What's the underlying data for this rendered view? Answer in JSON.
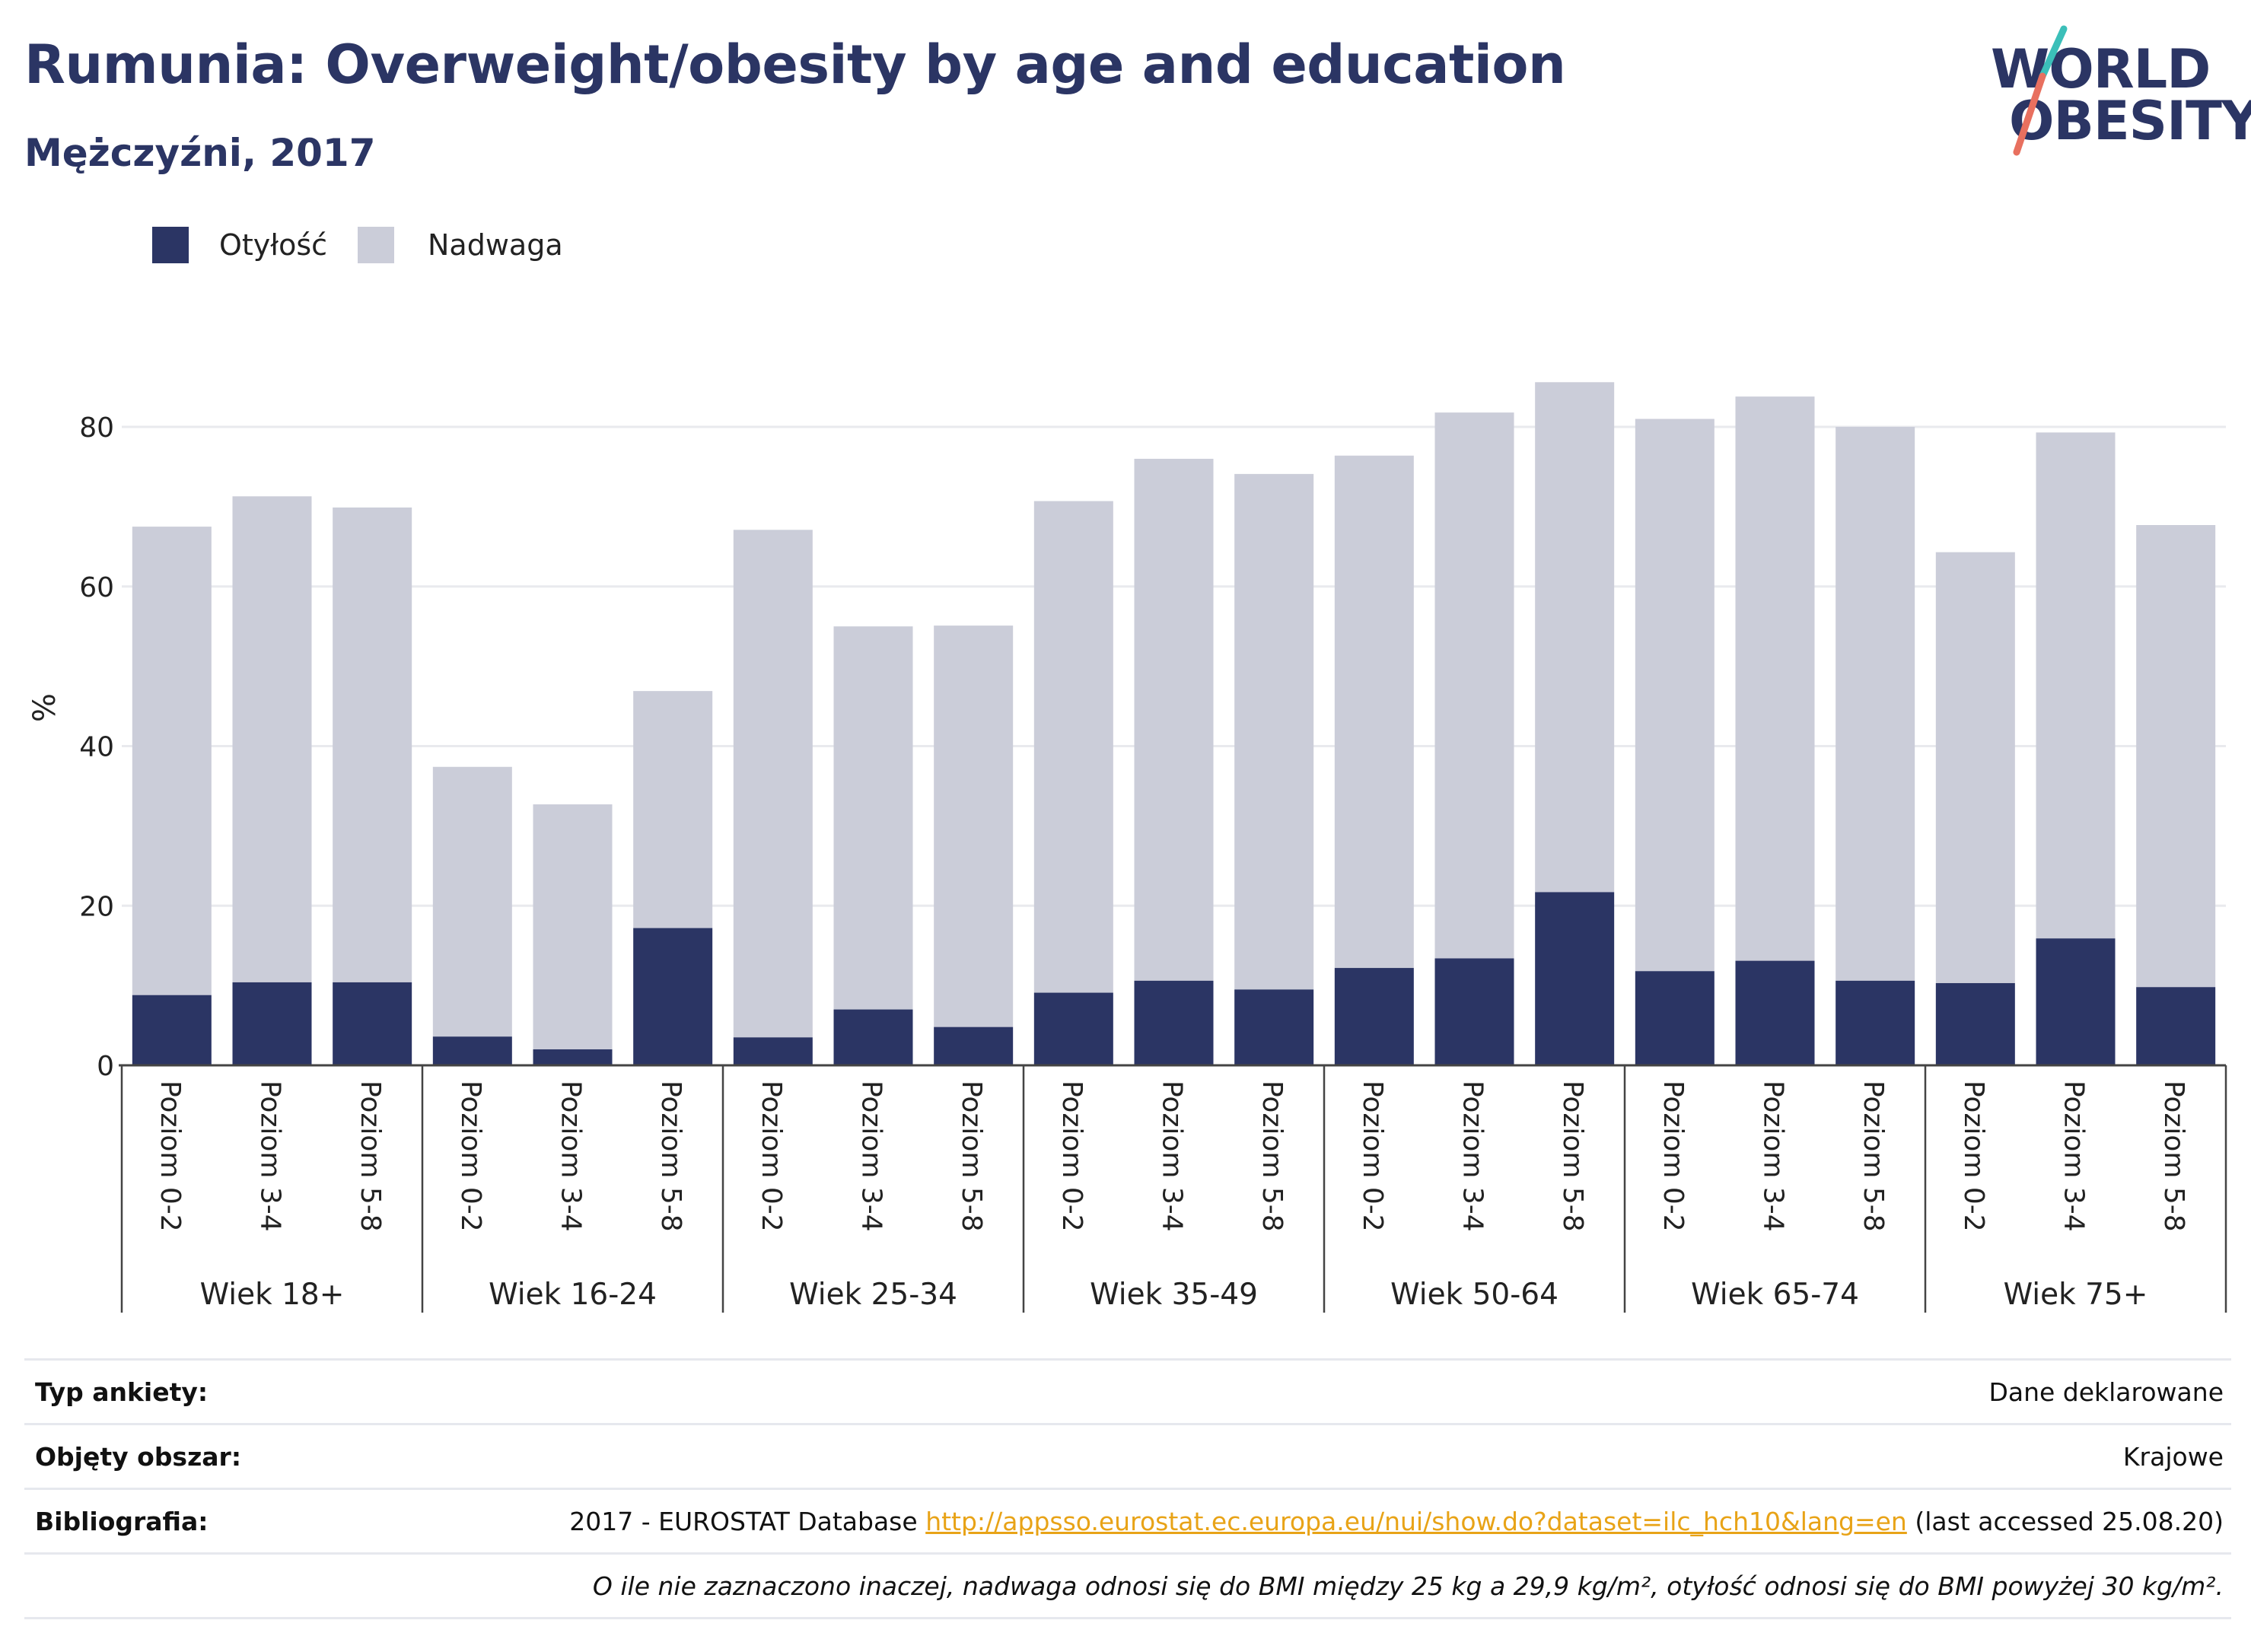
{
  "header": {
    "title": "Rumunia: Overweight/obesity by age and education",
    "subtitle": "Mężczyźni, 2017"
  },
  "logo": {
    "line1": "WORLD",
    "line2": "OBESITY"
  },
  "colors": {
    "obesity": "#2b3564",
    "overweight": "#cbcdd9",
    "title": "#2b3564",
    "link": "#e8a317",
    "logo_slash_teal": "#3bbfb9",
    "logo_slash_coral": "#e8705f"
  },
  "legend": [
    {
      "label": "Otyłość",
      "color": "#2b3564"
    },
    {
      "label": "Nadwaga",
      "color": "#cbcdd9"
    }
  ],
  "chart_data": {
    "type": "bar",
    "stacked": true,
    "ylabel": "%",
    "ylim": [
      0,
      90
    ],
    "yticks": [
      0,
      20,
      40,
      60,
      80
    ],
    "grid": true,
    "legend_position": "top-left",
    "groups": [
      {
        "label": "Wiek 18+",
        "categories": [
          "Poziom 0-2",
          "Poziom 3-4",
          "Poziom 5-8"
        ]
      },
      {
        "label": "Wiek 16-24",
        "categories": [
          "Poziom 0-2",
          "Poziom 3-4",
          "Poziom 5-8"
        ]
      },
      {
        "label": "Wiek 25-34",
        "categories": [
          "Poziom 0-2",
          "Poziom 3-4",
          "Poziom 5-8"
        ]
      },
      {
        "label": "Wiek 35-49",
        "categories": [
          "Poziom 0-2",
          "Poziom 3-4",
          "Poziom 5-8"
        ]
      },
      {
        "label": "Wiek 50-64",
        "categories": [
          "Poziom 0-2",
          "Poziom 3-4",
          "Poziom 5-8"
        ]
      },
      {
        "label": "Wiek 65-74",
        "categories": [
          "Poziom 0-2",
          "Poziom 3-4",
          "Poziom 5-8"
        ]
      },
      {
        "label": "Wiek 75+",
        "categories": [
          "Poziom 0-2",
          "Poziom 3-4",
          "Poziom 5-8"
        ]
      }
    ],
    "series": [
      {
        "name": "Otyłość",
        "values": [
          8.8,
          10.4,
          10.4,
          3.6,
          2.0,
          17.2,
          3.5,
          7.0,
          4.8,
          9.1,
          10.6,
          9.5,
          12.2,
          13.4,
          21.7,
          11.8,
          13.1,
          10.6,
          10.3,
          15.9,
          9.8
        ]
      },
      {
        "name": "Nadwaga",
        "values": [
          58.7,
          60.9,
          59.5,
          33.8,
          30.7,
          29.7,
          63.6,
          48.0,
          50.3,
          61.6,
          65.4,
          64.6,
          64.2,
          68.4,
          63.9,
          69.2,
          70.7,
          69.4,
          54.0,
          63.4,
          57.9
        ]
      }
    ]
  },
  "footer": {
    "rows": [
      {
        "key": "Typ ankiety:",
        "value": "Dane deklarowane"
      },
      {
        "key": "Objęty obszar:",
        "value": "Krajowe"
      }
    ],
    "bibliography": {
      "key": "Bibliografia:",
      "prefix": "2017 - EUROSTAT Database",
      "link": "http://appsso.eurostat.ec.europa.eu/nui/show.do?dataset=ilc_hch10&lang=en",
      "suffix": "(last accessed 25.08.20)"
    },
    "note": "O ile nie zaznaczono inaczej, nadwaga odnosi się do BMI między 25 kg a 29,9 kg/m², otyłość odnosi się do BMI powyżej 30 kg/m²."
  }
}
